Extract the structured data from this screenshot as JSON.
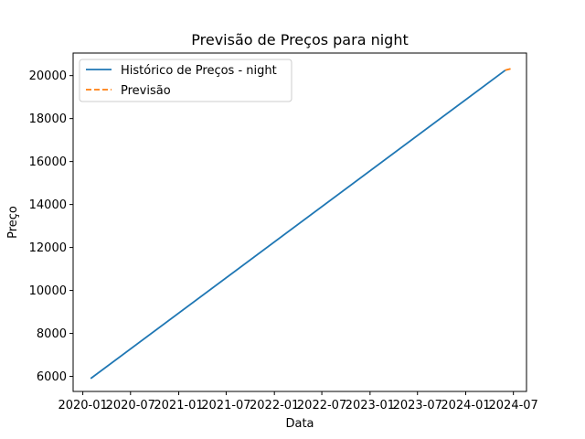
{
  "chart_data": {
    "type": "line",
    "title": "Previsão de Preços para night",
    "xlabel": "Data",
    "ylabel": "Preço",
    "x_ticks": [
      "2020-01",
      "2020-07",
      "2021-01",
      "2021-07",
      "2022-01",
      "2022-07",
      "2023-01",
      "2023-07",
      "2024-01",
      "2024-07"
    ],
    "y_ticks": [
      6000,
      8000,
      10000,
      12000,
      14000,
      16000,
      18000,
      20000
    ],
    "xlim": [
      "2019-11-25",
      "2024-08-20"
    ],
    "ylim": [
      5300,
      21050
    ],
    "grid": false,
    "legend_position": "top-left",
    "series": [
      {
        "name": "Histórico de Preços - night",
        "color": "#1f77b4",
        "style": "solid",
        "x": [
          "2020-01-31",
          "2024-05-31"
        ],
        "y": [
          5900,
          20250
        ]
      },
      {
        "name": "Previsão",
        "color": "#ff7f0e",
        "style": "dashed",
        "x": [
          "2024-05-31",
          "2024-06-30"
        ],
        "y": [
          20250,
          20350
        ]
      }
    ]
  }
}
